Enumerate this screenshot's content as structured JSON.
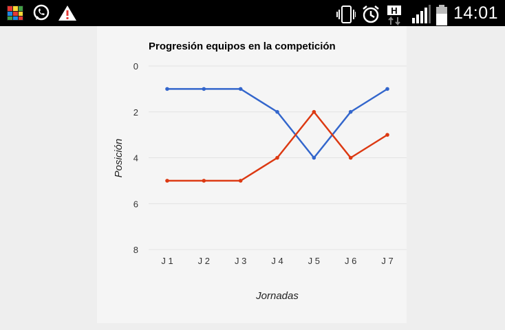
{
  "status_bar": {
    "time": "14:01",
    "left_icons": [
      "avg-antivirus-icon",
      "whatsapp-icon",
      "warning-icon"
    ],
    "right_icons": [
      "vibrate-icon",
      "alarm-icon",
      "hspa-data-icon",
      "signal-icon",
      "battery-icon"
    ]
  },
  "colors": {
    "series_1": "#3366cc",
    "series_2": "#dc3912"
  },
  "chart_data": {
    "type": "line",
    "title": "Progresión equipos en la competición",
    "xlabel": "Jornadas",
    "ylabel": "Posición",
    "categories": [
      "J 1",
      "J 2",
      "J 3",
      "J 4",
      "J 5",
      "J 6",
      "J 7"
    ],
    "ylim": [
      0,
      8
    ],
    "y_inverted": true,
    "y_ticks": [
      "0",
      "2",
      "4",
      "6",
      "8"
    ],
    "grid": true,
    "legend": "none",
    "series": [
      {
        "values": [
          1,
          1,
          1,
          2,
          4,
          2,
          1
        ],
        "color": "#3366cc"
      },
      {
        "values": [
          5,
          5,
          5,
          4,
          2,
          4,
          3
        ],
        "color": "#dc3912"
      }
    ]
  }
}
